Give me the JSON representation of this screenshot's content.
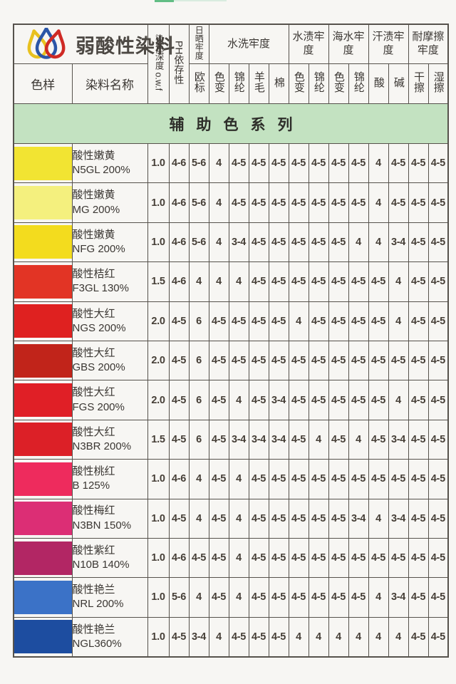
{
  "page": {
    "brand_title": "弱酸性染料",
    "banner": "辅助色系列"
  },
  "columns": {
    "sample": "色样",
    "name": "染料名称",
    "depth": "染色深度 o.w.f",
    "ph": "PH依存性",
    "groups": [
      {
        "label": "日晒牢度",
        "subs": [
          "欧标"
        ]
      },
      {
        "label": "水洗牢度",
        "subs": [
          "色变",
          "锦纶",
          "羊毛",
          "棉"
        ]
      },
      {
        "label": "水渍牢度",
        "subs": [
          "色变",
          "锦纶"
        ]
      },
      {
        "label": "海水牢度",
        "subs": [
          "色变",
          "锦纶"
        ]
      },
      {
        "label": "汗渍牢度",
        "subs": [
          "酸",
          "碱"
        ]
      },
      {
        "label": "耐摩擦牢度",
        "subs": [
          "干擦",
          "湿擦"
        ]
      }
    ]
  },
  "rows": [
    {
      "name": "酸性嫩黄",
      "code": "N5GL 200%",
      "swatch": "#f2e432",
      "values": [
        "1.0",
        "4-6",
        "5-6",
        "4",
        "4-5",
        "4-5",
        "4-5",
        "4-5",
        "4-5",
        "4-5",
        "4-5",
        "4",
        "4-5",
        "4-5",
        "4-5"
      ]
    },
    {
      "name": "酸性嫩黄",
      "code": "MG 200%",
      "swatch": "#f4f07e",
      "values": [
        "1.0",
        "4-6",
        "5-6",
        "4",
        "4-5",
        "4-5",
        "4-5",
        "4-5",
        "4-5",
        "4-5",
        "4-5",
        "4",
        "4-5",
        "4-5",
        "4-5"
      ]
    },
    {
      "name": "酸性嫩黄",
      "code": "NFG 200%",
      "swatch": "#f3dc1e",
      "values": [
        "1.0",
        "4-6",
        "5-6",
        "4",
        "3-4",
        "4-5",
        "4-5",
        "4-5",
        "4-5",
        "4-5",
        "4",
        "4",
        "3-4",
        "4-5",
        "4-5"
      ]
    },
    {
      "name": "酸性桔红",
      "code": "F3GL 130%",
      "swatch": "#e23425",
      "values": [
        "1.5",
        "4-6",
        "4",
        "4",
        "4",
        "4-5",
        "4-5",
        "4-5",
        "4-5",
        "4-5",
        "4-5",
        "4-5",
        "4",
        "4-5",
        "4-5"
      ]
    },
    {
      "name": "酸性大红",
      "code": "NGS 200%",
      "swatch": "#df2120",
      "values": [
        "2.0",
        "4-5",
        "6",
        "4-5",
        "4-5",
        "4-5",
        "4-5",
        "4",
        "4-5",
        "4-5",
        "4-5",
        "4-5",
        "4",
        "4-5",
        "4-5"
      ]
    },
    {
      "name": "酸性大红",
      "code": "GBS 200%",
      "swatch": "#c1241a",
      "values": [
        "2.0",
        "4-5",
        "6",
        "4-5",
        "4-5",
        "4-5",
        "4-5",
        "4-5",
        "4-5",
        "4-5",
        "4-5",
        "4-5",
        "4-5",
        "4-5",
        "4-5"
      ]
    },
    {
      "name": "酸性大红",
      "code": "FGS 200%",
      "swatch": "#e01f26",
      "values": [
        "2.0",
        "4-5",
        "6",
        "4-5",
        "4",
        "4-5",
        "3-4",
        "4-5",
        "4-5",
        "4-5",
        "4-5",
        "4-5",
        "4",
        "4-5",
        "4-5"
      ]
    },
    {
      "name": "酸性大红",
      "code": "N3BR 200%",
      "swatch": "#dc2027",
      "values": [
        "1.5",
        "4-5",
        "6",
        "4-5",
        "3-4",
        "3-4",
        "3-4",
        "4-5",
        "4",
        "4-5",
        "4",
        "4-5",
        "3-4",
        "4-5",
        "4-5"
      ]
    },
    {
      "name": "酸性桃红",
      "code": "B 125%",
      "swatch": "#ee2b5d",
      "values": [
        "1.0",
        "4-6",
        "4",
        "4-5",
        "4",
        "4-5",
        "4-5",
        "4-5",
        "4-5",
        "4-5",
        "4-5",
        "4-5",
        "4-5",
        "4-5",
        "4-5"
      ]
    },
    {
      "name": "酸性梅红",
      "code": "N3BN 150%",
      "swatch": "#dc2e75",
      "values": [
        "1.0",
        "4-5",
        "4",
        "4-5",
        "4",
        "4-5",
        "4-5",
        "4-5",
        "4-5",
        "4-5",
        "3-4",
        "4",
        "3-4",
        "4-5",
        "4-5"
      ]
    },
    {
      "name": "酸性紫红",
      "code": "N10B 140%",
      "swatch": "#b22664",
      "values": [
        "1.0",
        "4-6",
        "4-5",
        "4-5",
        "4",
        "4-5",
        "4-5",
        "4-5",
        "4-5",
        "4-5",
        "4-5",
        "4-5",
        "4-5",
        "4-5",
        "4-5"
      ]
    },
    {
      "name": "酸性艳兰",
      "code": "NRL 200%",
      "swatch": "#3b72c7",
      "values": [
        "1.0",
        "5-6",
        "4",
        "4-5",
        "4",
        "4-5",
        "4-5",
        "4-5",
        "4-5",
        "4-5",
        "4-5",
        "4",
        "3-4",
        "4-5",
        "4-5"
      ]
    },
    {
      "name": "酸性艳兰",
      "code": "NGL360%",
      "swatch": "#1d4da0",
      "values": [
        "1.0",
        "4-5",
        "3-4",
        "4",
        "4-5",
        "4-5",
        "4-5",
        "4",
        "4",
        "4",
        "4",
        "4",
        "4",
        "4-5",
        "4-5"
      ]
    }
  ],
  "colors": {
    "banner_bg": "#c3e2c1",
    "border": "#56524c",
    "page_bg": "#f7f6f3",
    "logo_yellow": "#e8c11f",
    "logo_blue": "#2b56a7",
    "logo_red": "#cf2a24",
    "top_mark_green": "#62bd84"
  }
}
